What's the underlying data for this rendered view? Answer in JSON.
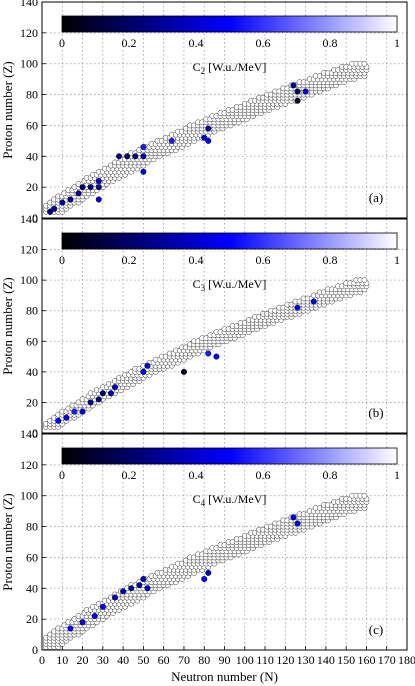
{
  "chart_data": [
    {
      "type": "scatter",
      "panel_label": "(a)",
      "colorbar": {
        "title_main": "C",
        "title_sub": "2",
        "title_unit": " [W.u./MeV]",
        "ticks": [
          "0",
          "0.2",
          "0.4",
          "0.6",
          "0.8",
          "1"
        ],
        "range": [
          0,
          1
        ]
      },
      "ylabel": "Proton number (Z)",
      "xlabel": "",
      "xlim": [
        0,
        180
      ],
      "ylim": [
        0,
        140
      ],
      "yticks": [
        "0",
        "20",
        "40",
        "60",
        "80",
        "100",
        "120",
        "140"
      ],
      "xticks": [],
      "grid": true,
      "nuclide_band": {
        "z_min": 4,
        "z_max": 100,
        "half_width_n": 6
      },
      "highlighted_points": [
        {
          "n": 4,
          "z": 4,
          "c": 0.25
        },
        {
          "n": 6,
          "z": 6,
          "c": 0.3
        },
        {
          "n": 10,
          "z": 10,
          "c": 0.35
        },
        {
          "n": 14,
          "z": 12,
          "c": 0.3
        },
        {
          "n": 18,
          "z": 16,
          "c": 0.25
        },
        {
          "n": 20,
          "z": 20,
          "c": 0.2
        },
        {
          "n": 24,
          "z": 20,
          "c": 0.25
        },
        {
          "n": 28,
          "z": 20,
          "c": 0.3
        },
        {
          "n": 28,
          "z": 24,
          "c": 0.35
        },
        {
          "n": 28,
          "z": 12,
          "c": 0.4
        },
        {
          "n": 38,
          "z": 40,
          "c": 0.25
        },
        {
          "n": 42,
          "z": 40,
          "c": 0.2
        },
        {
          "n": 46,
          "z": 40,
          "c": 0.3
        },
        {
          "n": 50,
          "z": 40,
          "c": 0.35
        },
        {
          "n": 50,
          "z": 30,
          "c": 0.4
        },
        {
          "n": 50,
          "z": 46,
          "c": 0.55
        },
        {
          "n": 64,
          "z": 50,
          "c": 0.55
        },
        {
          "n": 82,
          "z": 58,
          "c": 0.3
        },
        {
          "n": 82,
          "z": 50,
          "c": 0.45
        },
        {
          "n": 80,
          "z": 52,
          "c": 0.4
        },
        {
          "n": 124,
          "z": 86,
          "c": 0.3
        },
        {
          "n": 126,
          "z": 82,
          "c": 0.2
        },
        {
          "n": 126,
          "z": 76,
          "c": 0.05
        },
        {
          "n": 130,
          "z": 82,
          "c": 0.45
        }
      ]
    },
    {
      "type": "scatter",
      "panel_label": "(b)",
      "colorbar": {
        "title_main": "C",
        "title_sub": "3",
        "title_unit": " [W.u./MeV]",
        "ticks": [
          "0",
          "0.2",
          "0.4",
          "0.6",
          "0.8",
          "1"
        ],
        "range": [
          0,
          1
        ]
      },
      "ylabel": "Proton number (Z)",
      "xlabel": "",
      "xlim": [
        0,
        180
      ],
      "ylim": [
        0,
        140
      ],
      "yticks": [
        "0",
        "20",
        "40",
        "60",
        "80",
        "100",
        "120",
        "140"
      ],
      "xticks": [],
      "grid": true,
      "nuclide_band": {
        "z_min": 4,
        "z_max": 100,
        "half_width_n": 4
      },
      "highlighted_points": [
        {
          "n": 8,
          "z": 8,
          "c": 0.5
        },
        {
          "n": 12,
          "z": 10,
          "c": 0.45
        },
        {
          "n": 16,
          "z": 14,
          "c": 0.55
        },
        {
          "n": 20,
          "z": 14,
          "c": 0.45
        },
        {
          "n": 24,
          "z": 20,
          "c": 0.3
        },
        {
          "n": 28,
          "z": 22,
          "c": 0.25
        },
        {
          "n": 30,
          "z": 26,
          "c": 0.2
        },
        {
          "n": 34,
          "z": 26,
          "c": 0.35
        },
        {
          "n": 36,
          "z": 30,
          "c": 0.4
        },
        {
          "n": 50,
          "z": 40,
          "c": 0.5
        },
        {
          "n": 52,
          "z": 44,
          "c": 0.45
        },
        {
          "n": 70,
          "z": 40,
          "c": 0.05
        },
        {
          "n": 82,
          "z": 52,
          "c": 0.55
        },
        {
          "n": 86,
          "z": 50,
          "c": 0.5
        },
        {
          "n": 126,
          "z": 82,
          "c": 0.5
        },
        {
          "n": 134,
          "z": 86,
          "c": 0.45
        }
      ]
    },
    {
      "type": "scatter",
      "panel_label": "(c)",
      "colorbar": {
        "title_main": "C",
        "title_sub": "4",
        "title_unit": " [W.u./MeV]",
        "ticks": [
          "0",
          "0.2",
          "0.4",
          "0.6",
          "0.8",
          "1"
        ],
        "range": [
          0,
          1
        ]
      },
      "ylabel": "Proton number (Z)",
      "xlabel": "Neutron number (N)",
      "xlim": [
        0,
        180
      ],
      "ylim": [
        0,
        140
      ],
      "yticks": [
        "0",
        "20",
        "40",
        "60",
        "80",
        "100",
        "120",
        "140"
      ],
      "xticks": [
        "0",
        "10",
        "20",
        "30",
        "40",
        "50",
        "60",
        "70",
        "80",
        "90",
        "100",
        "110",
        "120",
        "130",
        "140",
        "150",
        "160",
        "170",
        "180"
      ],
      "grid": true,
      "nuclide_band": {
        "z_min": 2,
        "z_max": 100,
        "half_width_n": 6
      },
      "highlighted_points": [
        {
          "n": 14,
          "z": 14,
          "c": 0.5
        },
        {
          "n": 20,
          "z": 18,
          "c": 0.45
        },
        {
          "n": 26,
          "z": 22,
          "c": 0.5
        },
        {
          "n": 30,
          "z": 28,
          "c": 0.45
        },
        {
          "n": 36,
          "z": 34,
          "c": 0.4
        },
        {
          "n": 40,
          "z": 38,
          "c": 0.35
        },
        {
          "n": 44,
          "z": 40,
          "c": 0.3
        },
        {
          "n": 48,
          "z": 42,
          "c": 0.35
        },
        {
          "n": 50,
          "z": 46,
          "c": 0.4
        },
        {
          "n": 52,
          "z": 40,
          "c": 0.45
        },
        {
          "n": 82,
          "z": 50,
          "c": 0.4
        },
        {
          "n": 80,
          "z": 46,
          "c": 0.45
        },
        {
          "n": 124,
          "z": 86,
          "c": 0.45
        },
        {
          "n": 126,
          "z": 82,
          "c": 0.5
        }
      ]
    }
  ]
}
